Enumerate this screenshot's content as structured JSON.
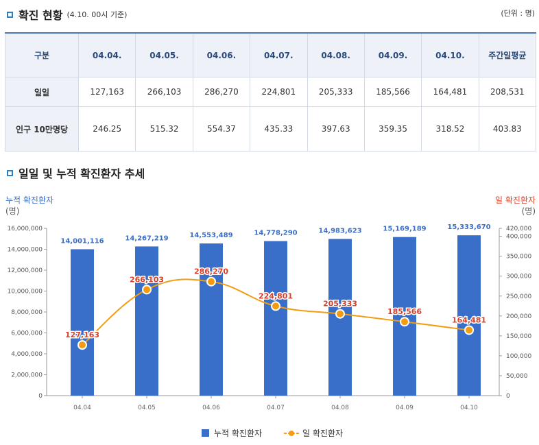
{
  "section1": {
    "title": "확진 현황",
    "subtitle": "(4.10. 00시 기준)",
    "unit": "(단위 : 명)"
  },
  "table": {
    "headers": [
      "구분",
      "04.04.",
      "04.05.",
      "04.06.",
      "04.07.",
      "04.08.",
      "04.09.",
      "04.10.",
      "주간일평균"
    ],
    "rows": [
      {
        "label": "일일",
        "values": [
          "127,163",
          "266,103",
          "286,270",
          "224,801",
          "205,333",
          "185,566",
          "164,481",
          "208,531"
        ]
      },
      {
        "label": "인구 10만명당",
        "values": [
          "246.25",
          "515.32",
          "554.37",
          "435.33",
          "397.63",
          "359.35",
          "318.52",
          "403.83"
        ]
      }
    ]
  },
  "section2": {
    "title": "일일 및 누적 확진환자 추세"
  },
  "colors": {
    "bar": "#3a6fc9",
    "line": "#f39c12",
    "marker": "#f39c12",
    "left_axis_title": "#3a6fc9",
    "right_axis_title": "#e0452b"
  },
  "chart_data": {
    "type": "bar",
    "categories": [
      "04.04",
      "04.05",
      "04.06",
      "04.07",
      "04.08",
      "04.09",
      "04.10"
    ],
    "series": [
      {
        "name": "누적 확진환자",
        "type": "bar",
        "axis": "left",
        "values": [
          14001116,
          14267219,
          14553489,
          14778290,
          14983623,
          15169189,
          15333670
        ],
        "labels": [
          "14,001,116",
          "14,267,219",
          "14,553,489",
          "14,778,290",
          "14,983,623",
          "15,169,189",
          "15,333,670"
        ]
      },
      {
        "name": "일 확진환자",
        "type": "line",
        "axis": "right",
        "values": [
          127163,
          266103,
          286270,
          224801,
          205333,
          185566,
          164481
        ],
        "labels": [
          "127,163",
          "266,103",
          "286,270",
          "224,801",
          "205,333",
          "185,566",
          "164,481"
        ]
      }
    ],
    "left_axis": {
      "title": "누적 확진환자",
      "unit": "(명)",
      "ylim": [
        0,
        16000000
      ],
      "ticks": [
        0,
        2000000,
        4000000,
        6000000,
        8000000,
        10000000,
        12000000,
        14000000,
        16000000
      ],
      "tick_labels": [
        "0",
        "2,000,000",
        "4,000,000",
        "6,000,000",
        "8,000,000",
        "10,000,000",
        "12,000,000",
        "14,000,000",
        "16,000,000"
      ]
    },
    "right_axis": {
      "title": "일 확진환자",
      "unit": "(명)",
      "ylim": [
        0,
        420000
      ],
      "ticks": [
        0,
        50000,
        100000,
        150000,
        200000,
        250000,
        300000,
        350000,
        400000,
        420000
      ],
      "tick_labels": [
        "0",
        "50,000",
        "100,000",
        "150,000",
        "200,000",
        "250,000",
        "300,000",
        "350,000",
        "400,000",
        "420,000"
      ]
    },
    "legend": "bottom"
  }
}
